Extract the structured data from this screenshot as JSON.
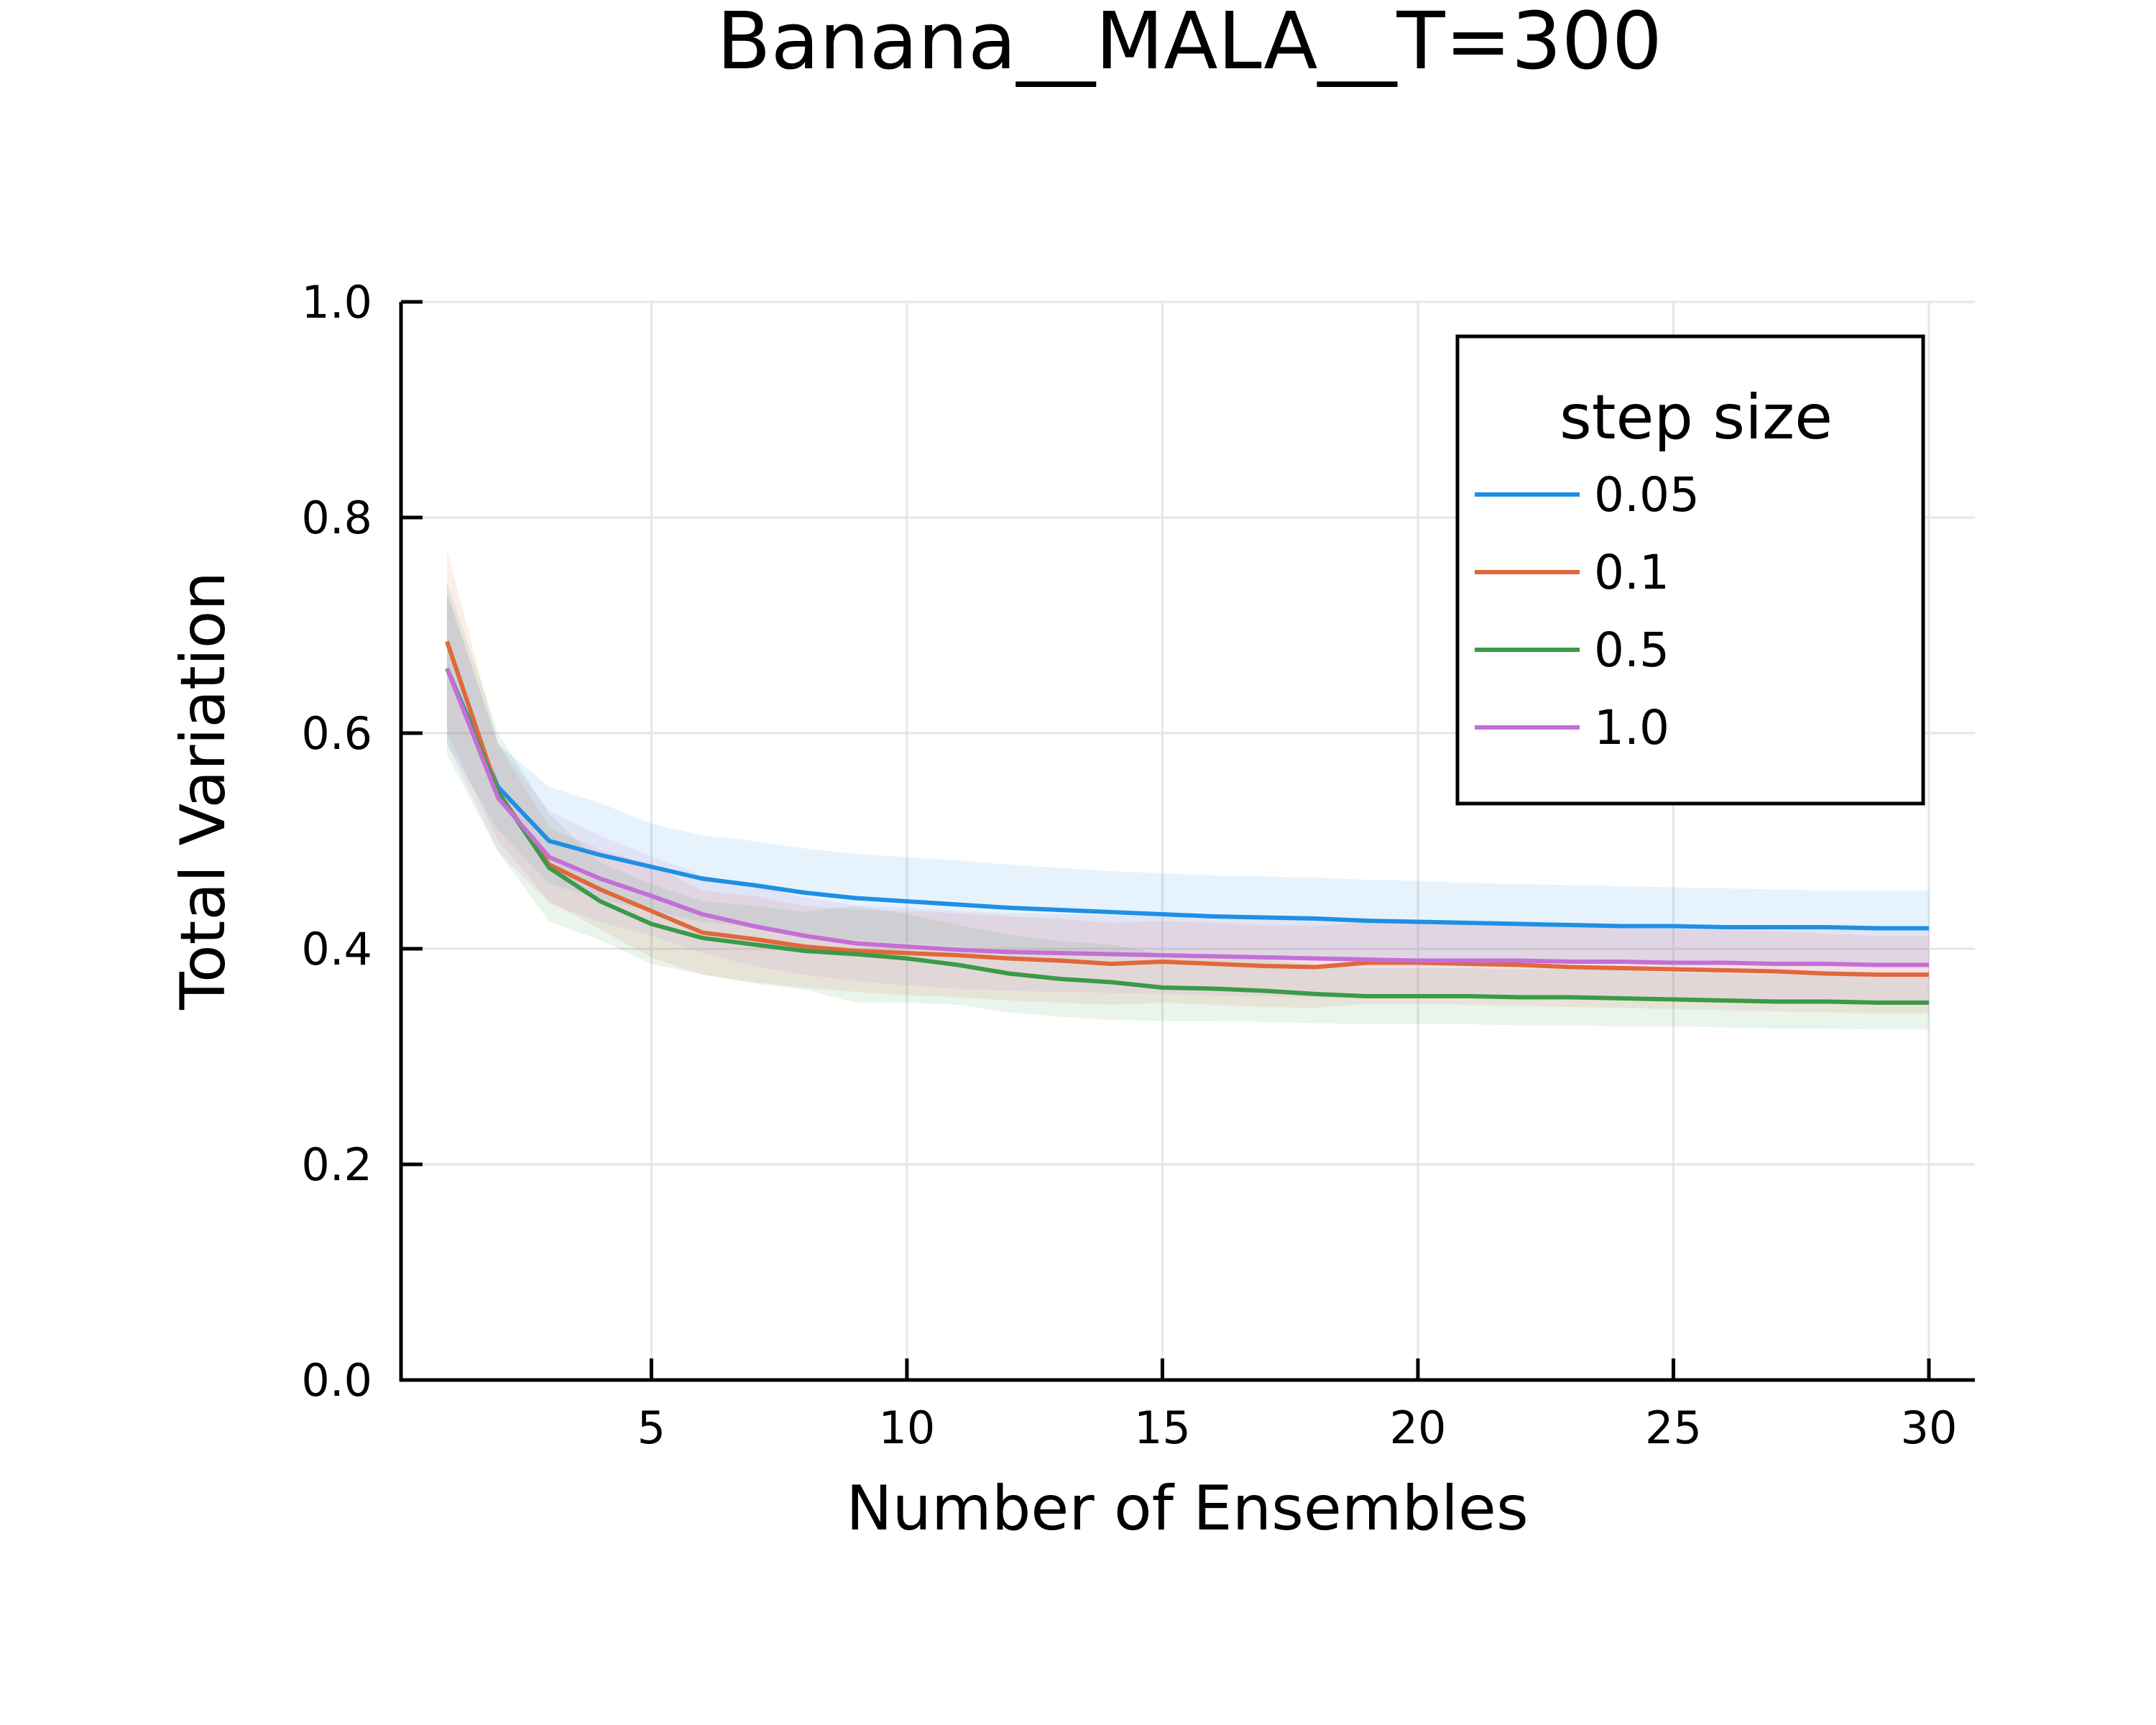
{
  "chart_data": {
    "type": "line",
    "title": "Banana__MALA__T=300",
    "xlabel": "Number of Ensembles",
    "ylabel": "Total Variation",
    "xlim": [
      0.1,
      30.9
    ],
    "ylim": [
      0.0,
      1.0
    ],
    "xticks": [
      5,
      10,
      15,
      20,
      25,
      30
    ],
    "xtick_labels": [
      "5",
      "10",
      "15",
      "20",
      "25",
      "30"
    ],
    "yticks": [
      0.0,
      0.2,
      0.4,
      0.6,
      0.8,
      1.0
    ],
    "ytick_labels": [
      "0.0",
      "0.2",
      "0.4",
      "0.6",
      "0.8",
      "1.0"
    ],
    "grid": true,
    "legend": {
      "title": "step size",
      "position": "top-right"
    },
    "x": [
      1,
      2,
      3,
      4,
      5,
      6,
      7,
      8,
      9,
      10,
      11,
      12,
      13,
      14,
      15,
      16,
      17,
      18,
      19,
      20,
      21,
      22,
      23,
      24,
      25,
      26,
      27,
      28,
      29,
      30
    ],
    "series": [
      {
        "name": "0.05",
        "color": "#1f8fe6",
        "values": [
          0.66,
          0.55,
          0.5,
          0.487,
          0.476,
          0.465,
          0.459,
          0.452,
          0.447,
          0.444,
          0.441,
          0.438,
          0.436,
          0.434,
          0.432,
          0.43,
          0.429,
          0.428,
          0.426,
          0.425,
          0.424,
          0.423,
          0.422,
          0.421,
          0.421,
          0.42,
          0.42,
          0.42,
          0.419,
          0.419
        ],
        "lower": [
          0.59,
          0.51,
          0.46,
          0.446,
          0.435,
          0.425,
          0.42,
          0.413,
          0.408,
          0.405,
          0.402,
          0.4,
          0.398,
          0.396,
          0.394,
          0.393,
          0.392,
          0.391,
          0.39,
          0.389,
          0.388,
          0.388,
          0.387,
          0.387,
          0.386,
          0.386,
          0.386,
          0.386,
          0.385,
          0.385
        ],
        "upper": [
          0.73,
          0.59,
          0.55,
          0.535,
          0.516,
          0.505,
          0.5,
          0.493,
          0.488,
          0.485,
          0.482,
          0.478,
          0.475,
          0.472,
          0.47,
          0.468,
          0.467,
          0.466,
          0.464,
          0.463,
          0.461,
          0.46,
          0.459,
          0.458,
          0.457,
          0.456,
          0.455,
          0.454,
          0.454,
          0.454
        ]
      },
      {
        "name": "0.1",
        "color": "#e0683a",
        "values": [
          0.685,
          0.545,
          0.478,
          0.455,
          0.435,
          0.415,
          0.409,
          0.402,
          0.398,
          0.396,
          0.394,
          0.391,
          0.389,
          0.386,
          0.388,
          0.386,
          0.384,
          0.383,
          0.387,
          0.387,
          0.386,
          0.385,
          0.383,
          0.382,
          0.381,
          0.38,
          0.379,
          0.377,
          0.376,
          0.376
        ],
        "lower": [
          0.6,
          0.5,
          0.444,
          0.418,
          0.392,
          0.376,
          0.369,
          0.364,
          0.36,
          0.357,
          0.355,
          0.352,
          0.35,
          0.348,
          0.35,
          0.348,
          0.346,
          0.345,
          0.349,
          0.349,
          0.348,
          0.347,
          0.346,
          0.345,
          0.344,
          0.343,
          0.342,
          0.341,
          0.34,
          0.34
        ],
        "upper": [
          0.77,
          0.59,
          0.512,
          0.492,
          0.478,
          0.454,
          0.449,
          0.44,
          0.436,
          0.435,
          0.433,
          0.43,
          0.428,
          0.424,
          0.426,
          0.424,
          0.422,
          0.421,
          0.425,
          0.425,
          0.424,
          0.423,
          0.421,
          0.419,
          0.418,
          0.417,
          0.416,
          0.414,
          0.412,
          0.412
        ]
      },
      {
        "name": "0.5",
        "color": "#3b9a48",
        "values": [
          0.66,
          0.545,
          0.475,
          0.444,
          0.423,
          0.41,
          0.404,
          0.398,
          0.395,
          0.391,
          0.385,
          0.377,
          0.372,
          0.369,
          0.364,
          0.363,
          0.361,
          0.358,
          0.356,
          0.356,
          0.356,
          0.355,
          0.355,
          0.354,
          0.353,
          0.352,
          0.351,
          0.351,
          0.35,
          0.35
        ],
        "lower": [
          0.58,
          0.49,
          0.425,
          0.408,
          0.386,
          0.376,
          0.368,
          0.362,
          0.35,
          0.35,
          0.348,
          0.341,
          0.337,
          0.334,
          0.333,
          0.333,
          0.332,
          0.331,
          0.33,
          0.33,
          0.33,
          0.329,
          0.329,
          0.328,
          0.328,
          0.327,
          0.326,
          0.326,
          0.325,
          0.325
        ],
        "upper": [
          0.74,
          0.6,
          0.525,
          0.48,
          0.46,
          0.444,
          0.44,
          0.434,
          0.44,
          0.432,
          0.422,
          0.413,
          0.407,
          0.404,
          0.395,
          0.393,
          0.39,
          0.385,
          0.382,
          0.382,
          0.382,
          0.381,
          0.381,
          0.38,
          0.378,
          0.377,
          0.376,
          0.376,
          0.375,
          0.375
        ]
      },
      {
        "name": "1.0",
        "color": "#c36fd6",
        "values": [
          0.66,
          0.54,
          0.485,
          0.465,
          0.449,
          0.432,
          0.421,
          0.412,
          0.405,
          0.402,
          0.399,
          0.397,
          0.396,
          0.395,
          0.394,
          0.393,
          0.392,
          0.391,
          0.39,
          0.389,
          0.389,
          0.389,
          0.388,
          0.388,
          0.387,
          0.387,
          0.386,
          0.386,
          0.385,
          0.385
        ],
        "lower": [
          0.59,
          0.49,
          0.442,
          0.425,
          0.412,
          0.396,
          0.384,
          0.376,
          0.37,
          0.366,
          0.363,
          0.361,
          0.36,
          0.359,
          0.358,
          0.357,
          0.356,
          0.355,
          0.355,
          0.354,
          0.354,
          0.354,
          0.353,
          0.353,
          0.352,
          0.352,
          0.351,
          0.351,
          0.35,
          0.35
        ],
        "upper": [
          0.73,
          0.59,
          0.528,
          0.505,
          0.486,
          0.468,
          0.458,
          0.448,
          0.44,
          0.438,
          0.435,
          0.433,
          0.432,
          0.431,
          0.43,
          0.429,
          0.428,
          0.427,
          0.426,
          0.425,
          0.425,
          0.424,
          0.424,
          0.423,
          0.423,
          0.422,
          0.422,
          0.421,
          0.421,
          0.42
        ]
      }
    ]
  }
}
